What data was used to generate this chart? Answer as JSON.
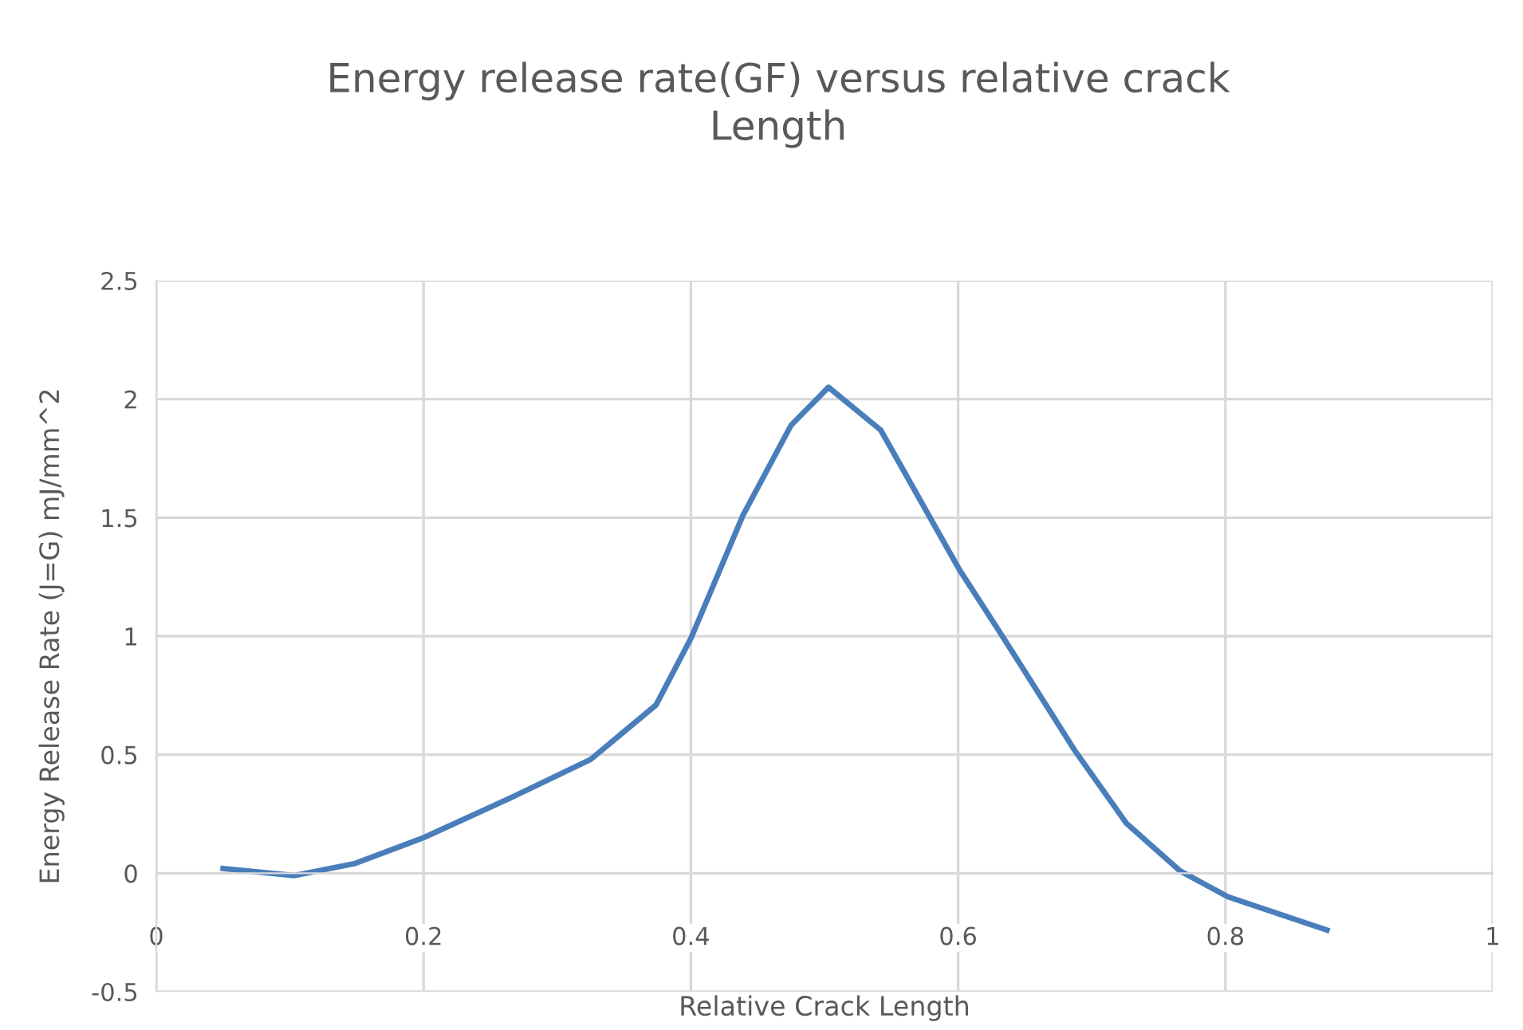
{
  "chart_data": {
    "type": "line",
    "title": "Energy release rate(GF) versus relative crack Length",
    "xlabel": "Relative Crack Length",
    "ylabel": "Energy Release Rate (J=G) mJ/mm^2",
    "series": [
      {
        "color": "#4a7ebb",
        "x": [
          0.05,
          0.103,
          0.148,
          0.2,
          0.266,
          0.325,
          0.374,
          0.4,
          0.439,
          0.475,
          0.503,
          0.542,
          0.601,
          0.632,
          0.687,
          0.726,
          0.766,
          0.802,
          0.876
        ],
        "values": [
          0.02,
          -0.01,
          0.04,
          0.15,
          0.32,
          0.48,
          0.71,
          0.99,
          1.51,
          1.89,
          2.05,
          1.87,
          1.28,
          1.01,
          0.52,
          0.21,
          0.01,
          -0.1,
          -0.24
        ]
      }
    ],
    "xlim": [
      0,
      1
    ],
    "xticks": [
      0,
      0.2,
      0.4,
      0.6,
      0.8,
      1
    ],
    "ylim": [
      -0.5,
      2.5
    ],
    "yticks": [
      -0.5,
      0,
      0.5,
      1,
      1.5,
      2,
      2.5
    ],
    "grid": true,
    "marker": "none",
    "line_style": "solid"
  }
}
